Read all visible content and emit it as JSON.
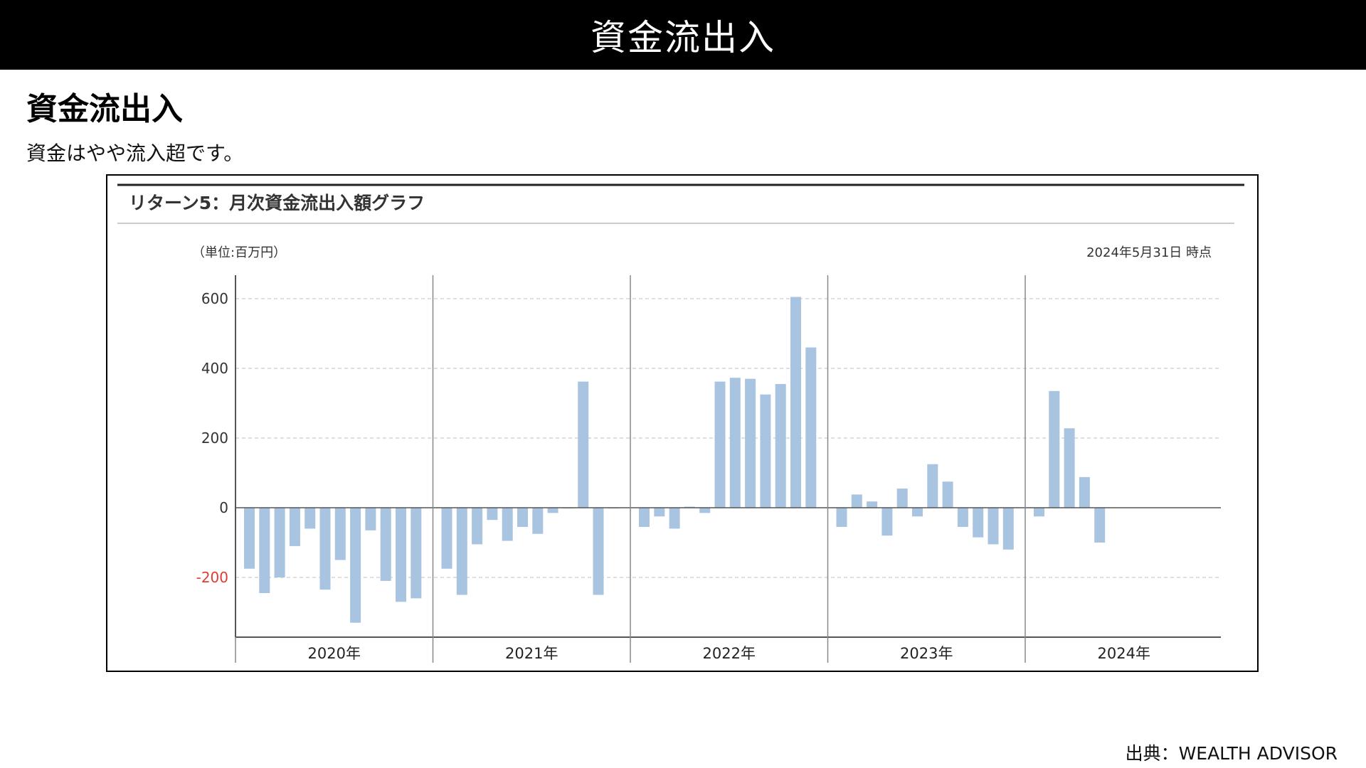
{
  "banner": {
    "title": "資金流出入"
  },
  "section": {
    "heading": "資金流出入",
    "summary": "資金はやや流入超です。"
  },
  "chart_panel": {
    "title": "リターン5：月次資金流出入額グラフ",
    "unit_label": "（単位:百万円）",
    "as_of": "2024年5月31日 時点"
  },
  "source": {
    "text": "出典：WEALTH ADVISOR"
  },
  "colors": {
    "bar": "#a8c4e0",
    "negative_tick": "#e03c31",
    "axis": "#555555",
    "grid": "#cccccc"
  },
  "chart_data": {
    "type": "bar",
    "title": "リターン5：月次資金流出入額グラフ",
    "ylabel": "（単位:百万円）",
    "ylim": [
      -370,
      600
    ],
    "yticks": [
      600,
      400,
      200,
      0,
      -200
    ],
    "grid": true,
    "year_groups": [
      {
        "label": "2020年",
        "values": [
          -175,
          -245,
          -200,
          -110,
          -60,
          -235,
          -150,
          -330,
          -65,
          -210,
          -270,
          -260
        ]
      },
      {
        "label": "2021年",
        "values": [
          -175,
          -250,
          -105,
          -35,
          -95,
          -55,
          -75,
          -15,
          -2,
          362,
          -250,
          -2
        ]
      },
      {
        "label": "2022年",
        "values": [
          -55,
          -25,
          -60,
          3,
          -15,
          362,
          373,
          370,
          325,
          355,
          605,
          460
        ]
      },
      {
        "label": "2023年",
        "values": [
          -55,
          38,
          18,
          -80,
          55,
          -25,
          125,
          75,
          -55,
          -85,
          -105,
          -120
        ]
      },
      {
        "label": "2024年",
        "values": [
          -25,
          335,
          228,
          88,
          -100
        ]
      }
    ]
  }
}
